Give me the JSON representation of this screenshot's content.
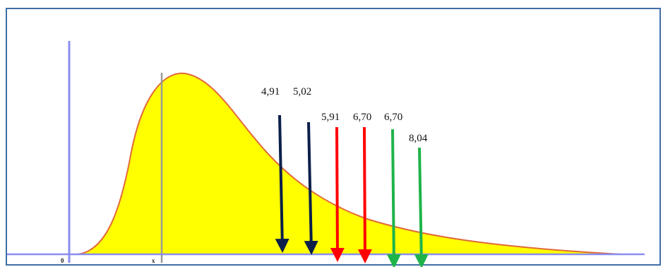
{
  "diagram": {
    "frame_color": "#3f6fa6",
    "curve_fill": "#ffff00",
    "curve_stroke": "#e06a3a",
    "axis_color": "#8a8ef0",
    "mean_line_color": "#9a9a9a",
    "x_axis_labels": [
      {
        "id": "origin",
        "text": "0"
      },
      {
        "id": "mean",
        "text": "x"
      }
    ],
    "arrows": [
      {
        "label": "4,91",
        "color": "#0b1f4a"
      },
      {
        "label": "5,02",
        "color": "#0b1f4a"
      },
      {
        "label": "5,91",
        "color": "#ff0000"
      },
      {
        "label": "6,70",
        "color": "#ff0000"
      },
      {
        "label": "6,70",
        "color": "#1fb34a"
      },
      {
        "label": "8,04",
        "color": "#1fb34a"
      }
    ]
  }
}
